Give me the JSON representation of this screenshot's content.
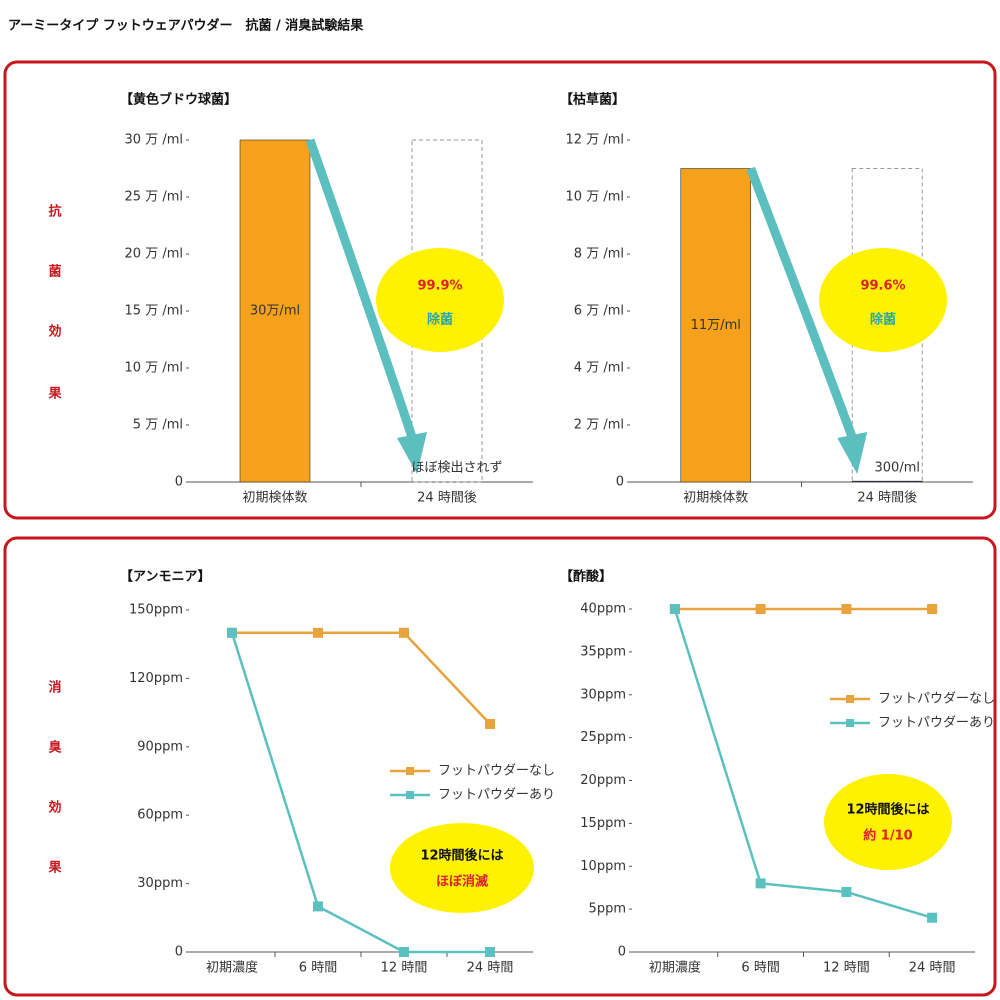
{
  "title": "アーミータイプ フットウェアパウダー　抗菌 / 消臭試験結果",
  "sections": [
    {
      "label": [
        "抗",
        "菌",
        "効",
        "果"
      ]
    },
    {
      "label": [
        "消",
        "臭",
        "効",
        "果"
      ]
    }
  ],
  "chart_data": [
    {
      "type": "bar",
      "title": "【黄色ブドウ球菌】",
      "categories": [
        "初期検体数",
        "24 時間後"
      ],
      "values": [
        30,
        0
      ],
      "value_labels": [
        "30万/ml",
        "ほぼ検出されず"
      ],
      "color": "#f5a11c",
      "ylim": [
        0,
        30
      ],
      "yticks": [
        0,
        {
          "value": 5,
          "label": "5 万 /ml"
        },
        {
          "value": 10,
          "label": "10 万 /ml"
        },
        {
          "value": 15,
          "label": "15 万 /ml"
        },
        {
          "value": 20,
          "label": "20 万 /ml"
        },
        {
          "value": 25,
          "label": "25 万 /ml"
        },
        {
          "value": 30,
          "label": "30 万 /ml"
        }
      ],
      "annotations": [
        "99.9%",
        "除菌"
      ]
    },
    {
      "type": "bar",
      "title": "【枯草菌】",
      "categories": [
        "初期検体数",
        "24 時間後"
      ],
      "values": [
        11,
        0.03
      ],
      "value_labels": [
        "11万/ml",
        "300/ml"
      ],
      "color": "#f5a11c",
      "ylim": [
        0,
        12
      ],
      "yticks": [
        0,
        {
          "value": 2,
          "label": "2 万 /ml"
        },
        {
          "value": 4,
          "label": "4 万 /ml"
        },
        {
          "value": 6,
          "label": "6 万 /ml"
        },
        {
          "value": 8,
          "label": "8 万 /ml"
        },
        {
          "value": 10,
          "label": "10 万 /ml"
        },
        {
          "value": 12,
          "label": "12 万 /ml"
        }
      ],
      "annotations": [
        "99.6%",
        "除菌"
      ]
    },
    {
      "type": "line",
      "title": "【アンモニア】",
      "categories": [
        "初期濃度",
        "6 時間",
        "12 時間",
        "24 時間"
      ],
      "series": [
        {
          "name": "フットパウダーなし",
          "color": "#e8a33d",
          "values": [
            140,
            140,
            140,
            100
          ]
        },
        {
          "name": "フットパウダーあり",
          "color": "#5bc0c0",
          "values": [
            140,
            20,
            0,
            0
          ]
        }
      ],
      "ylim": [
        0,
        150
      ],
      "yticks": [
        0,
        {
          "value": 30,
          "label": "30ppm"
        },
        {
          "value": 60,
          "label": "60ppm"
        },
        {
          "value": 90,
          "label": "90ppm"
        },
        {
          "value": 120,
          "label": "120ppm"
        },
        {
          "value": 150,
          "label": "150ppm"
        }
      ],
      "legend": "right",
      "annotations": [
        "12時間後には",
        "ほぼ消滅"
      ]
    },
    {
      "type": "line",
      "title": "【酢酸】",
      "categories": [
        "初期濃度",
        "6 時間",
        "12 時間",
        "24 時間"
      ],
      "series": [
        {
          "name": "フットパウダーなし",
          "color": "#e8a33d",
          "values": [
            40,
            40,
            40,
            40
          ]
        },
        {
          "name": "フットパウダーあり",
          "color": "#5bc0c0",
          "values": [
            40,
            8,
            7,
            4
          ]
        }
      ],
      "ylim": [
        0,
        40
      ],
      "yticks": [
        0,
        {
          "value": 5,
          "label": "5ppm"
        },
        {
          "value": 10,
          "label": "10ppm"
        },
        {
          "value": 15,
          "label": "15ppm"
        },
        {
          "value": 20,
          "label": "20ppm"
        },
        {
          "value": 25,
          "label": "25ppm"
        },
        {
          "value": 30,
          "label": "30ppm"
        },
        {
          "value": 35,
          "label": "35ppm"
        },
        {
          "value": 40,
          "label": "40ppm"
        }
      ],
      "legend": "right",
      "annotations": [
        "12時間後には",
        "約 1/10"
      ]
    }
  ]
}
